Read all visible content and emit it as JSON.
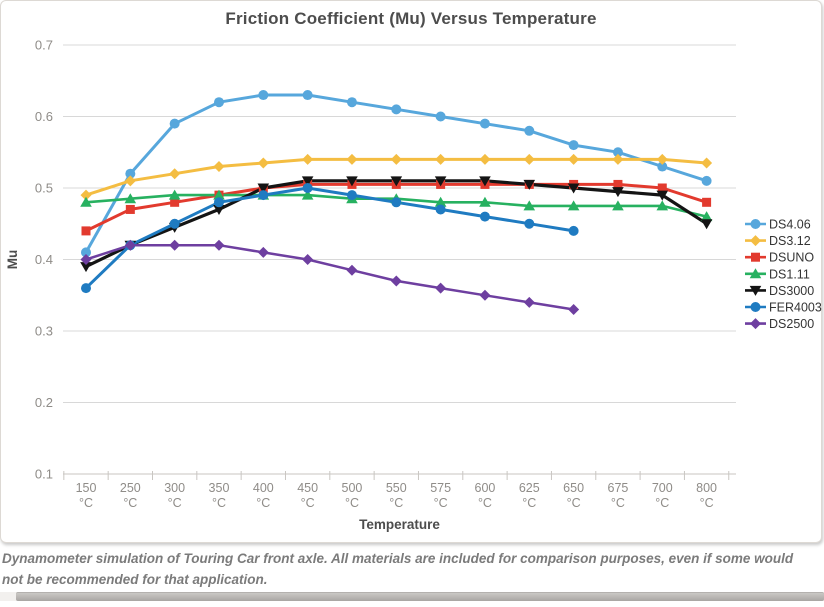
{
  "chart_data": {
    "type": "line",
    "title": "Friction Coefficient (Mu) Versus Temperature",
    "xlabel": "Temperature",
    "ylabel": "Mu",
    "ylim": [
      0.1,
      0.7
    ],
    "ytick_step": 0.1,
    "grid": "horizontal",
    "legend_position": "right",
    "categories": [
      "150",
      "250",
      "300",
      "350",
      "400",
      "450",
      "500",
      "550",
      "575",
      "600",
      "625",
      "650",
      "675",
      "700",
      "800"
    ],
    "category_unit": "°C",
    "series": [
      {
        "name": "DS4.06",
        "color": "#57A7DC",
        "marker": "circle",
        "line_width": 3,
        "values": [
          0.41,
          0.52,
          0.59,
          0.62,
          0.63,
          0.63,
          0.62,
          0.61,
          0.6,
          0.59,
          0.58,
          0.56,
          0.55,
          0.53,
          0.51
        ]
      },
      {
        "name": "DS3.12",
        "color": "#F4BD42",
        "marker": "diamond",
        "line_width": 3,
        "values": [
          0.49,
          0.51,
          0.52,
          0.53,
          0.535,
          0.54,
          0.54,
          0.54,
          0.54,
          0.54,
          0.54,
          0.54,
          0.54,
          0.54,
          0.535
        ]
      },
      {
        "name": "DSUNO",
        "color": "#E23A2E",
        "marker": "square",
        "line_width": 3,
        "values": [
          0.44,
          0.47,
          0.48,
          0.49,
          0.5,
          0.505,
          0.505,
          0.505,
          0.505,
          0.505,
          0.505,
          0.505,
          0.505,
          0.5,
          0.48
        ]
      },
      {
        "name": "DS1.11",
        "color": "#27B160",
        "marker": "triangle-up",
        "line_width": 2.6,
        "values": [
          0.48,
          0.485,
          0.49,
          0.49,
          0.49,
          0.49,
          0.485,
          0.485,
          0.48,
          0.48,
          0.475,
          0.475,
          0.475,
          0.475,
          0.46
        ]
      },
      {
        "name": "DS3000",
        "color": "#141414",
        "marker": "triangle-down",
        "line_width": 3.2,
        "values": [
          0.39,
          0.42,
          0.445,
          0.47,
          0.5,
          0.51,
          0.51,
          0.51,
          0.51,
          0.51,
          0.505,
          0.5,
          0.495,
          0.49,
          0.45
        ]
      },
      {
        "name": "FER4003",
        "color": "#1F7BC1",
        "marker": "circle",
        "line_width": 3,
        "values": [
          0.36,
          0.42,
          0.45,
          0.48,
          0.49,
          0.5,
          0.49,
          0.48,
          0.47,
          0.46,
          0.45,
          0.44,
          null,
          null,
          null
        ]
      },
      {
        "name": "DS2500",
        "color": "#6E3FA0",
        "marker": "diamond",
        "line_width": 2.5,
        "values": [
          0.4,
          0.42,
          0.42,
          0.42,
          0.41,
          0.4,
          0.385,
          0.37,
          0.36,
          0.35,
          0.34,
          0.33,
          null,
          null,
          null
        ]
      }
    ]
  },
  "caption": {
    "text": "Dynamometer simulation of Touring Car front axle. All materials are included for comparison purposes, even if some would not be recommended for that application."
  },
  "theme": {
    "grid_color": "#d8d8d8",
    "axis_color": "#c9c6c2",
    "tick_label_color": "#8f8c88",
    "axis_title_color": "#4d4d4d",
    "title_color": "#4d4d4d",
    "legend_text_color": "#353535",
    "caption_color": "#7b7b7b",
    "background": "#ffffff"
  }
}
